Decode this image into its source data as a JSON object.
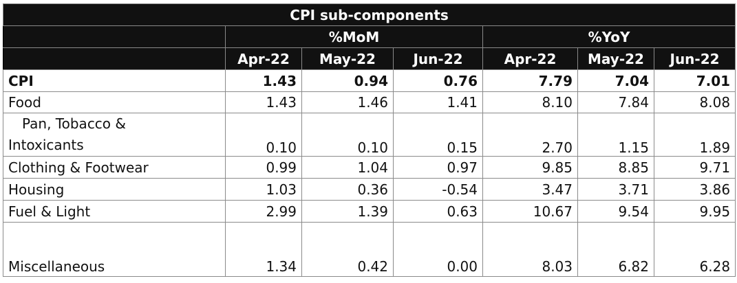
{
  "table": {
    "title": "CPI sub-components",
    "groups": [
      "%MoM",
      "%YoY"
    ],
    "periods": [
      "Apr-22",
      "May-22",
      "Jun-22",
      "Apr-22",
      "May-22",
      "Jun-22"
    ],
    "rows": [
      {
        "label": "CPI",
        "values": [
          "1.43",
          "0.94",
          "0.76",
          "7.79",
          "7.04",
          "7.01"
        ]
      },
      {
        "label": "Food",
        "values": [
          "1.43",
          "1.46",
          "1.41",
          "8.10",
          "7.84",
          "8.08"
        ]
      },
      {
        "label_line1": "Pan, Tobacco &",
        "label_line2": "Intoxicants",
        "values": [
          "0.10",
          "0.10",
          "0.15",
          "2.70",
          "1.15",
          "1.89"
        ]
      },
      {
        "label": "Clothing & Footwear",
        "values": [
          "0.99",
          "1.04",
          "0.97",
          "9.85",
          "8.85",
          "9.71"
        ]
      },
      {
        "label": "Housing",
        "values": [
          "1.03",
          "0.36",
          "-0.54",
          "3.47",
          "3.71",
          "3.86"
        ]
      },
      {
        "label": "Fuel & Light",
        "values": [
          "2.99",
          "1.39",
          "0.63",
          "10.67",
          "9.54",
          "9.95"
        ]
      },
      {
        "label": "Miscellaneous",
        "values": [
          "1.34",
          "0.42",
          "0.00",
          "8.03",
          "6.82",
          "6.28"
        ]
      }
    ]
  }
}
